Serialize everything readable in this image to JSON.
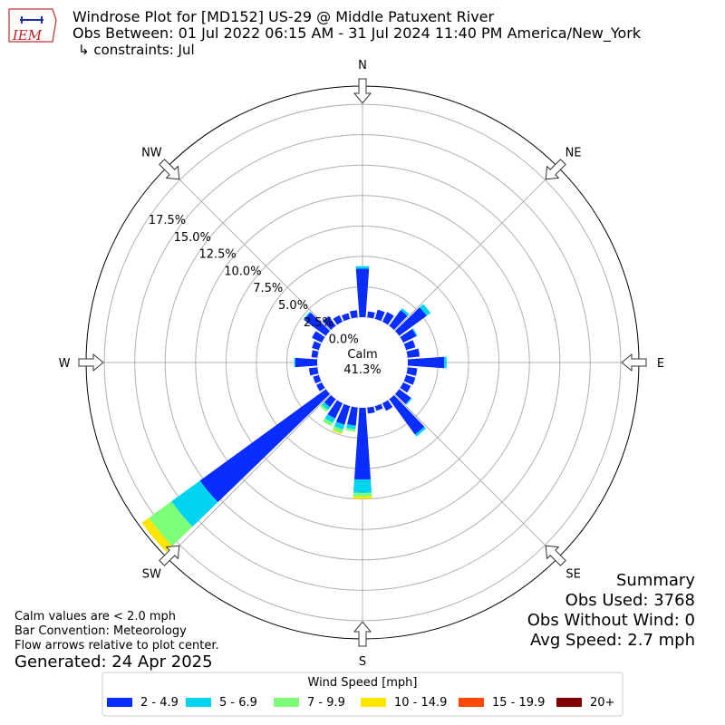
{
  "logo_text": "IEM",
  "chart_data": {
    "type": "windrose",
    "title": "Windrose Plot for [MD152] US-29 @ Middle Patuxent River",
    "subtitle": "Obs Between: 01 Jul 2022 06:15 AM - 31 Jul 2024 11:40 PM America/New_York",
    "constraints": "↳ constraints: Jul",
    "calm_label": "Calm",
    "calm_value": {
      "value": 41.3,
      "label": "41.3%"
    },
    "x": [
      0,
      10,
      20,
      30,
      40,
      50,
      60,
      70,
      80,
      90,
      100,
      110,
      120,
      130,
      140,
      150,
      160,
      170,
      180,
      190,
      200,
      210,
      220,
      230,
      240,
      250,
      260,
      270,
      280,
      290,
      300,
      310,
      320,
      330,
      340,
      350
    ],
    "xlim": [
      0,
      360
    ],
    "xticks": [
      {
        "value": 0,
        "label": "N"
      },
      {
        "value": 45,
        "label": "NE"
      },
      {
        "value": 90,
        "label": "E"
      },
      {
        "value": 135,
        "label": "SE"
      },
      {
        "value": 180,
        "label": "S"
      },
      {
        "value": 225,
        "label": "SW"
      },
      {
        "value": 270,
        "label": "W"
      },
      {
        "value": 315,
        "label": "NW"
      }
    ],
    "ylim": [
      0,
      19
    ],
    "yticks": [
      {
        "value": 0,
        "label": "0.0%"
      },
      {
        "value": 2.5,
        "label": "2.5%"
      },
      {
        "value": 5,
        "label": "5.0%"
      },
      {
        "value": 7.5,
        "label": "7.5%"
      },
      {
        "value": 10,
        "label": "10.0%"
      },
      {
        "value": 12.5,
        "label": "12.5%"
      },
      {
        "value": 15,
        "label": "15.0%"
      },
      {
        "value": 17.5,
        "label": "17.5%"
      }
    ],
    "grid": true,
    "legend_title": "Wind Speed [mph]",
    "series": [
      {
        "name": "2 - 4.9",
        "color": "#0a2dff",
        "values": [
          4.0,
          0.5,
          0.8,
          0.9,
          1.6,
          2.8,
          1.2,
          0.8,
          1.0,
          3.0,
          0.8,
          0.8,
          0.7,
          1.2,
          3.6,
          0.7,
          0.4,
          0.5,
          5.9,
          1.5,
          1.6,
          1.4,
          0.8,
          12.8,
          0.5,
          0.5,
          0.7,
          1.8,
          0.5,
          0.6,
          0.9,
          2.2,
          1.0,
          0.6,
          0.5,
          0.6
        ]
      },
      {
        "name": "5 - 6.9",
        "color": "#00d4f0",
        "values": [
          0.2,
          0,
          0,
          0,
          0.2,
          0.4,
          0.1,
          0,
          0,
          0.2,
          0,
          0,
          0,
          0.1,
          0.2,
          0,
          0,
          0,
          1.1,
          0.3,
          0.4,
          0.4,
          0.3,
          2.9,
          0,
          0,
          0,
          0.1,
          0,
          0,
          0,
          0.1,
          0,
          0,
          0,
          0
        ]
      },
      {
        "name": "7 - 9.9",
        "color": "#7dff7a",
        "values": [
          0,
          0,
          0,
          0,
          0,
          0,
          0,
          0,
          0,
          0,
          0,
          0,
          0,
          0,
          0,
          0,
          0,
          0,
          0.3,
          0.2,
          0.3,
          0.3,
          0.2,
          2.3,
          0,
          0,
          0,
          0,
          0,
          0,
          0,
          0,
          0,
          0,
          0,
          0
        ]
      },
      {
        "name": "10 - 14.9",
        "color": "#ffe600",
        "values": [
          0,
          0,
          0,
          0,
          0,
          0,
          0,
          0,
          0,
          0,
          0,
          0,
          0,
          0,
          0,
          0,
          0,
          0,
          0.2,
          0,
          0.1,
          0,
          0,
          0.7,
          0,
          0,
          0,
          0,
          0,
          0,
          0,
          0,
          0,
          0,
          0,
          0
        ]
      },
      {
        "name": "15 - 19.9",
        "color": "#ff4a00",
        "values": [
          0,
          0,
          0,
          0,
          0,
          0,
          0,
          0,
          0,
          0,
          0,
          0,
          0,
          0,
          0,
          0,
          0,
          0,
          0,
          0,
          0,
          0,
          0,
          0,
          0,
          0,
          0,
          0,
          0,
          0,
          0,
          0,
          0,
          0,
          0,
          0
        ]
      },
      {
        "name": "20+",
        "color": "#800000",
        "values": [
          0,
          0,
          0,
          0,
          0,
          0,
          0,
          0,
          0,
          0,
          0,
          0,
          0,
          0,
          0,
          0,
          0,
          0,
          0,
          0,
          0,
          0,
          0,
          0,
          0,
          0,
          0,
          0,
          0,
          0,
          0,
          0,
          0,
          0,
          0,
          0
        ]
      }
    ]
  },
  "notes": [
    "Calm values are < 2.0 mph",
    "Bar Convention: Meteorology",
    "Flow arrows relative to plot center."
  ],
  "generated": "Generated: 24 Apr 2025",
  "summary": {
    "title": "Summary",
    "lines": [
      "Obs Used: 3768",
      "Obs Without Wind: 0",
      "Avg Speed: 2.7 mph"
    ]
  }
}
